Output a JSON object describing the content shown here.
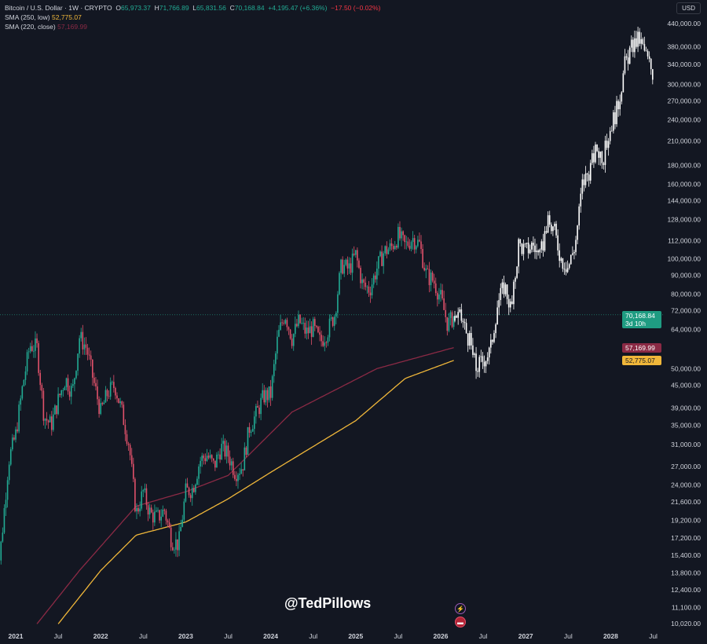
{
  "header": {
    "symbol": "Bitcoin / U.S. Dollar · 1W · CRYPTO",
    "o_label": "O",
    "o": "65,973.37",
    "h_label": "H",
    "h": "71,766.89",
    "l_label": "L",
    "l": "65,831.56",
    "c_label": "C",
    "c": "70,168.84",
    "change": "+4,195.47 (+6.36%)",
    "change2": "−17.50 (−0.02%)"
  },
  "indicators": [
    {
      "label": "SMA (250, low)",
      "value": "52,775.07",
      "color": "#f0b73a"
    },
    {
      "label": "SMA (220, close)",
      "value": "57,169.99",
      "color": "#8b2a45"
    }
  ],
  "currency_button": "USD",
  "watermark": "@TedPillows",
  "price_tag": {
    "price": "70,168.84",
    "countdown": "3d 10h",
    "color": "#1f9c82"
  },
  "colors": {
    "background": "#131722",
    "up": "#22ab94",
    "down": "#e0516a",
    "projection": "#ffffff"
  },
  "icons": [
    "lightning-icon",
    "us-flag-icon"
  ],
  "chart_data": {
    "type": "candlestick",
    "scale": "log",
    "grid": false,
    "yticks": [
      "440,000.00",
      "380,000.00",
      "340,000.00",
      "300,000.00",
      "270,000.00",
      "240,000.00",
      "210,000.00",
      "180,000.00",
      "160,000.00",
      "144,000.00",
      "128,000.00",
      "112,000.00",
      "100,000.00",
      "90,000.00",
      "80,000.00",
      "72,000.00",
      "64,000.00",
      "50,000.00",
      "45,000.00",
      "39,000.00",
      "35,000.00",
      "31,000.00",
      "27,000.00",
      "24,000.00",
      "21,600.00",
      "19,200.00",
      "17,200.00",
      "15,400.00",
      "13,800.00",
      "12,400.00",
      "11,100.00",
      "10,020.00"
    ],
    "xticks": [
      "2021",
      "Jul",
      "2022",
      "Jul",
      "2023",
      "Jul",
      "2024",
      "Jul",
      "2025",
      "Jul",
      "2026",
      "Jul",
      "2027",
      "Jul",
      "2028",
      "Jul"
    ],
    "xtick_dates": [
      "2021-01",
      "2021-07",
      "2022-01",
      "2022-07",
      "2023-01",
      "2023-07",
      "2024-01",
      "2024-07",
      "2025-01",
      "2025-07",
      "2026-01",
      "2026-07",
      "2027-01",
      "2027-07",
      "2028-01",
      "2028-07"
    ],
    "history_closes": [
      [
        "2020-10",
        11500
      ],
      [
        "2020-11",
        17000
      ],
      [
        "2020-12",
        28000
      ],
      [
        "2021-01",
        33000
      ],
      [
        "2021-02",
        45000
      ],
      [
        "2021-03",
        58000
      ],
      [
        "2021-04",
        57000
      ],
      [
        "2021-05",
        37000
      ],
      [
        "2021-06",
        35000
      ],
      [
        "2021-07",
        41000
      ],
      [
        "2021-08",
        47000
      ],
      [
        "2021-09",
        43000
      ],
      [
        "2021-10",
        61000
      ],
      [
        "2021-11",
        57000
      ],
      [
        "2021-12",
        46000
      ],
      [
        "2022-01",
        38000
      ],
      [
        "2022-02",
        43000
      ],
      [
        "2022-03",
        45000
      ],
      [
        "2022-04",
        38000
      ],
      [
        "2022-05",
        31000
      ],
      [
        "2022-06",
        20000
      ],
      [
        "2022-07",
        23000
      ],
      [
        "2022-08",
        20000
      ],
      [
        "2022-09",
        19500
      ],
      [
        "2022-10",
        20500
      ],
      [
        "2022-11",
        17000
      ],
      [
        "2022-12",
        16500
      ],
      [
        "2023-01",
        23000
      ],
      [
        "2023-02",
        23500
      ],
      [
        "2023-03",
        28000
      ],
      [
        "2023-04",
        29000
      ],
      [
        "2023-05",
        27000
      ],
      [
        "2023-06",
        30500
      ],
      [
        "2023-07",
        29000
      ],
      [
        "2023-08",
        26000
      ],
      [
        "2023-09",
        27000
      ],
      [
        "2023-10",
        34500
      ],
      [
        "2023-11",
        37700
      ],
      [
        "2023-12",
        42000
      ],
      [
        "2024-01",
        42500
      ],
      [
        "2024-02",
        61000
      ],
      [
        "2024-03",
        71000
      ],
      [
        "2024-04",
        60600
      ],
      [
        "2024-05",
        67500
      ],
      [
        "2024-06",
        62700
      ],
      [
        "2024-07",
        64600
      ],
      [
        "2024-08",
        59000
      ],
      [
        "2024-09",
        63300
      ],
      [
        "2024-10",
        70200
      ],
      [
        "2024-11",
        96400
      ],
      [
        "2024-12",
        93400
      ],
      [
        "2025-01",
        102400
      ],
      [
        "2025-02",
        84300
      ],
      [
        "2025-03",
        82500
      ],
      [
        "2025-04",
        94200
      ],
      [
        "2025-05",
        104600
      ],
      [
        "2025-06",
        107100
      ],
      [
        "2025-07",
        115700
      ],
      [
        "2025-08",
        108200
      ],
      [
        "2025-09",
        114000
      ],
      [
        "2025-10",
        109500
      ],
      [
        "2025-11",
        90000
      ],
      [
        "2025-12",
        87000
      ],
      [
        "2026-01",
        78000
      ],
      [
        "2026-02",
        66000
      ],
      [
        "2026-03",
        70168
      ]
    ],
    "projection_closes": [
      [
        "2026-03",
        70168
      ],
      [
        "2026-04",
        68000
      ],
      [
        "2026-05",
        60000
      ],
      [
        "2026-06",
        50000
      ],
      [
        "2026-07",
        53000
      ],
      [
        "2026-08",
        56000
      ],
      [
        "2026-09",
        75000
      ],
      [
        "2026-10",
        85000
      ],
      [
        "2026-11",
        72000
      ],
      [
        "2026-12",
        110000
      ],
      [
        "2027-01",
        105000
      ],
      [
        "2027-02",
        110000
      ],
      [
        "2027-03",
        100000
      ],
      [
        "2027-04",
        125000
      ],
      [
        "2027-05",
        120000
      ],
      [
        "2027-06",
        100000
      ],
      [
        "2027-07",
        95000
      ],
      [
        "2027-08",
        110000
      ],
      [
        "2027-09",
        160000
      ],
      [
        "2027-10",
        175000
      ],
      [
        "2027-11",
        200000
      ],
      [
        "2027-12",
        190000
      ],
      [
        "2028-01",
        230000
      ],
      [
        "2028-02",
        260000
      ],
      [
        "2028-03",
        340000
      ],
      [
        "2028-04",
        380000
      ],
      [
        "2028-05",
        400000
      ],
      [
        "2028-06",
        360000
      ],
      [
        "2028-07",
        320000
      ]
    ],
    "sma220_close": [
      [
        "2021-04",
        10000
      ],
      [
        "2021-10",
        14000
      ],
      [
        "2022-06",
        21000
      ],
      [
        "2023-01",
        23000
      ],
      [
        "2023-07",
        25500
      ],
      [
        "2024-04",
        38000
      ],
      [
        "2025-04",
        50000
      ],
      [
        "2026-03",
        57170
      ]
    ],
    "sma250_low": [
      [
        "2021-07",
        10000
      ],
      [
        "2022-01",
        14000
      ],
      [
        "2022-06",
        17500
      ],
      [
        "2023-01",
        19000
      ],
      [
        "2023-07",
        22000
      ],
      [
        "2024-01",
        26000
      ],
      [
        "2025-01",
        36000
      ],
      [
        "2025-08",
        47000
      ],
      [
        "2026-03",
        52775
      ]
    ],
    "current_price": 70168.84
  }
}
